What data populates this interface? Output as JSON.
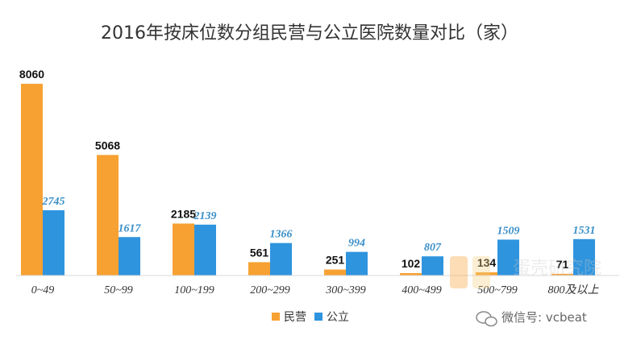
{
  "chart_data": {
    "type": "bar",
    "title": "2016年按床位数分组民营与公立医院数量对比（家）",
    "categories": [
      "0~49",
      "50~99",
      "100~199",
      "200~299",
      "300~399",
      "400~499",
      "500~799",
      "800及以上"
    ],
    "series": [
      {
        "name": "民营",
        "values": [
          8060,
          5068,
          2185,
          561,
          251,
          102,
          134,
          71
        ]
      },
      {
        "name": "公立",
        "values": [
          2745,
          1617,
          2139,
          1366,
          994,
          807,
          1509,
          1531
        ]
      }
    ],
    "ylim": [
      0,
      8060
    ],
    "grid": false,
    "legend_position": "bottom"
  },
  "colors": {
    "private": "#f7a132",
    "public": "#2f94de"
  },
  "watermark": {
    "logo_text": "蛋壳研究院",
    "wechat_text": "微信号: vcbeat",
    "wechat_icon": "wechat-icon"
  }
}
